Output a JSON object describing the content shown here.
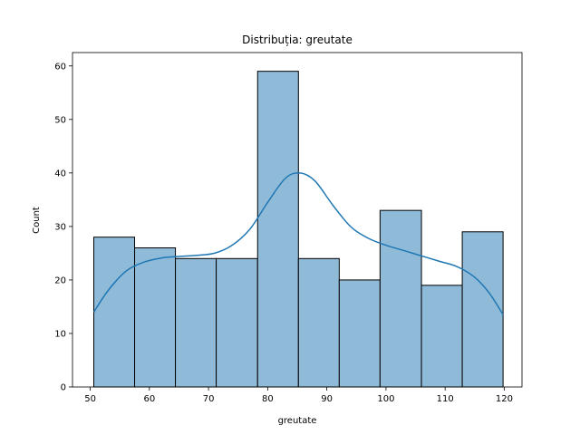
{
  "chart_data": {
    "type": "bar",
    "title": "Distribuția: greutate",
    "xlabel": "greutate",
    "ylabel": "Count",
    "xlim": [
      47.0,
      123.0
    ],
    "ylim": [
      0,
      62.5
    ],
    "xticks": [
      50,
      60,
      70,
      80,
      90,
      100,
      110,
      120
    ],
    "yticks": [
      0,
      10,
      20,
      30,
      40,
      50,
      60
    ],
    "bin_edges": [
      50.6,
      57.5,
      64.4,
      71.3,
      78.3,
      85.2,
      92.1,
      99.0,
      106.0,
      112.9,
      119.8
    ],
    "values": [
      28,
      26,
      24,
      24,
      59,
      24,
      20,
      33,
      19,
      29
    ],
    "kde": {
      "x": [
        50.6,
        53,
        56,
        59,
        62,
        65,
        68,
        71,
        74,
        77,
        80,
        83,
        85.5,
        88,
        91,
        94,
        97,
        100,
        103,
        106,
        109,
        112,
        115,
        117.5,
        119.8
      ],
      "y": [
        14.0,
        18.0,
        21.6,
        23.3,
        24.1,
        24.4,
        24.6,
        25.0,
        26.5,
        29.5,
        34.5,
        39.0,
        40.0,
        38.5,
        34.0,
        30.0,
        27.8,
        26.5,
        25.5,
        24.5,
        23.5,
        22.5,
        20.5,
        17.5,
        13.5
      ]
    },
    "grid": false,
    "colors": {
      "bar_fill": "#8fbbd9",
      "bar_edge": "#000000",
      "kde_line": "#1f77b4"
    }
  }
}
